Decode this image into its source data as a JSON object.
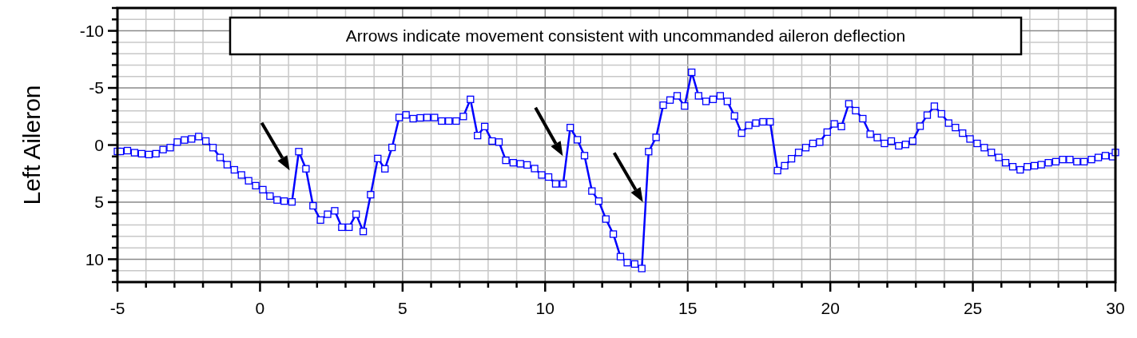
{
  "chart_data": {
    "type": "line",
    "ylabel": "Left Aileron",
    "annotations": [
      "Arrows indicate movement consistent with uncommanded aileron deflection"
    ],
    "xlim": [
      -5,
      30
    ],
    "ylim": [
      12,
      -12
    ],
    "xticks": [
      -5,
      {
        "value": -4,
        "label": null
      },
      {
        "value": -3,
        "label": null
      },
      {
        "value": -2,
        "label": null
      },
      {
        "value": -1,
        "label": null
      },
      0,
      {
        "value": 1,
        "label": null
      },
      {
        "value": 2,
        "label": null
      },
      {
        "value": 3,
        "label": null
      },
      {
        "value": 4,
        "label": null
      },
      5,
      {
        "value": 6,
        "label": null
      },
      {
        "value": 7,
        "label": null
      },
      {
        "value": 8,
        "label": null
      },
      {
        "value": 9,
        "label": null
      },
      10,
      {
        "value": 11,
        "label": null
      },
      {
        "value": 12,
        "label": null
      },
      {
        "value": 13,
        "label": null
      },
      {
        "value": 14,
        "label": null
      },
      15,
      {
        "value": 16,
        "label": null
      },
      {
        "value": 17,
        "label": null
      },
      {
        "value": 18,
        "label": null
      },
      {
        "value": 19,
        "label": null
      },
      20,
      {
        "value": 21,
        "label": null
      },
      {
        "value": 22,
        "label": null
      },
      {
        "value": 23,
        "label": null
      },
      {
        "value": 24,
        "label": null
      },
      25,
      {
        "value": 26,
        "label": null
      },
      {
        "value": 27,
        "label": null
      },
      {
        "value": 28,
        "label": null
      },
      {
        "value": 29,
        "label": null
      },
      30
    ],
    "yticks": [
      {
        "value": 12,
        "label": null
      },
      {
        "value": 11,
        "label": null
      },
      10,
      {
        "value": 9,
        "label": null
      },
      {
        "value": 8,
        "label": null
      },
      {
        "value": 7,
        "label": null
      },
      {
        "value": 6,
        "label": null
      },
      5,
      {
        "value": 4,
        "label": null
      },
      {
        "value": 3,
        "label": null
      },
      {
        "value": 2,
        "label": null
      },
      {
        "value": 1,
        "label": null
      },
      0,
      {
        "value": -1,
        "label": null
      },
      {
        "value": -2,
        "label": null
      },
      {
        "value": -3,
        "label": null
      },
      {
        "value": -4,
        "label": null
      },
      -5,
      {
        "value": -6,
        "label": null
      },
      {
        "value": -7,
        "label": null
      },
      {
        "value": -8,
        "label": null
      },
      {
        "value": -9,
        "label": null
      },
      -10,
      {
        "value": -11,
        "label": null
      },
      {
        "value": -12,
        "label": null
      }
    ],
    "grid": true,
    "marker": "square",
    "line_style": "solid",
    "x": [
      -5.0,
      -4.9,
      -4.65,
      -4.4,
      -4.15,
      -3.9,
      -3.65,
      -3.4,
      -3.15,
      -2.9,
      -2.65,
      -2.4,
      -2.15,
      -1.9,
      -1.65,
      -1.4,
      -1.15,
      -0.9,
      -0.65,
      -0.4,
      -0.15,
      0.1,
      0.35,
      0.6,
      0.85,
      1.12,
      1.36,
      1.61,
      1.86,
      2.12,
      2.37,
      2.62,
      2.87,
      3.12,
      3.37,
      3.62,
      3.88,
      4.13,
      4.38,
      4.63,
      4.88,
      5.12,
      5.37,
      5.62,
      5.86,
      6.12,
      6.37,
      6.62,
      6.88,
      7.13,
      7.38,
      7.63,
      7.88,
      8.14,
      8.38,
      8.62,
      8.88,
      9.13,
      9.37,
      9.63,
      9.88,
      10.12,
      10.37,
      10.63,
      10.88,
      11.13,
      11.38,
      11.64,
      11.88,
      12.13,
      12.39,
      12.64,
      12.88,
      13.14,
      13.39,
      13.63,
      13.89,
      14.14,
      14.38,
      14.63,
      14.89,
      15.14,
      15.38,
      15.64,
      15.89,
      16.14,
      16.39,
      16.64,
      16.89,
      17.14,
      17.39,
      17.64,
      17.89,
      18.15,
      18.4,
      18.64,
      18.89,
      19.14,
      19.39,
      19.63,
      19.89,
      20.14,
      20.39,
      20.65,
      20.89,
      21.14,
      21.4,
      21.65,
      21.9,
      22.14,
      22.4,
      22.64,
      22.89,
      23.15,
      23.4,
      23.65,
      23.9,
      24.15,
      24.39,
      24.64,
      24.9,
      25.15,
      25.4,
      25.65,
      25.91,
      26.15,
      26.4,
      26.66,
      26.91,
      27.16,
      27.4,
      27.65,
      27.91,
      28.15,
      28.4,
      28.65,
      28.9,
      29.16,
      29.4,
      29.65,
      29.9,
      30.0
    ],
    "series": [
      {
        "color": "#0000ff",
        "values": [
          0.56,
          0.56,
          0.49,
          0.67,
          0.76,
          0.83,
          0.76,
          0.4,
          0.23,
          -0.26,
          -0.44,
          -0.53,
          -0.74,
          -0.35,
          0.23,
          1.09,
          1.72,
          2.17,
          2.62,
          3.13,
          3.56,
          3.91,
          4.47,
          4.81,
          4.91,
          4.98,
          0.58,
          2.08,
          5.32,
          6.57,
          6.06,
          5.76,
          7.2,
          7.2,
          6.06,
          7.57,
          4.35,
          1.18,
          2.08,
          0.21,
          -2.41,
          -2.64,
          -2.31,
          -2.38,
          -2.41,
          -2.41,
          -2.1,
          -2.1,
          -2.1,
          -2.5,
          -4.0,
          -0.83,
          -1.62,
          -0.35,
          -0.26,
          1.34,
          1.55,
          1.64,
          1.74,
          2.06,
          2.62,
          2.8,
          3.4,
          3.4,
          -1.53,
          -0.46,
          0.93,
          4.03,
          4.91,
          6.48,
          7.8,
          9.77,
          10.3,
          10.42,
          10.81,
          0.58,
          -0.67,
          -3.49,
          -3.94,
          -4.31,
          -3.42,
          -6.37,
          -4.31,
          -3.82,
          -4.0,
          -4.31,
          -3.82,
          -2.55,
          -1.04,
          -1.72,
          -1.92,
          -2.03,
          -2.03,
          2.24,
          1.81,
          1.2,
          0.65,
          0.23,
          -0.14,
          -0.26,
          -1.13,
          -1.85,
          -1.62,
          -3.61,
          -3.01,
          -2.31,
          -0.95,
          -0.65,
          -0.14,
          -0.35,
          0.07,
          -0.05,
          -0.35,
          -1.65,
          -2.62,
          -3.4,
          -2.73,
          -1.92,
          -1.53,
          -1.04,
          -0.53,
          -0.14,
          0.23,
          0.65,
          1.09,
          1.55,
          1.9,
          2.17,
          1.9,
          1.81,
          1.72,
          1.55,
          1.46,
          1.27,
          1.27,
          1.46,
          1.46,
          1.27,
          1.09,
          0.93,
          1.02,
          0.65
        ]
      }
    ]
  }
}
